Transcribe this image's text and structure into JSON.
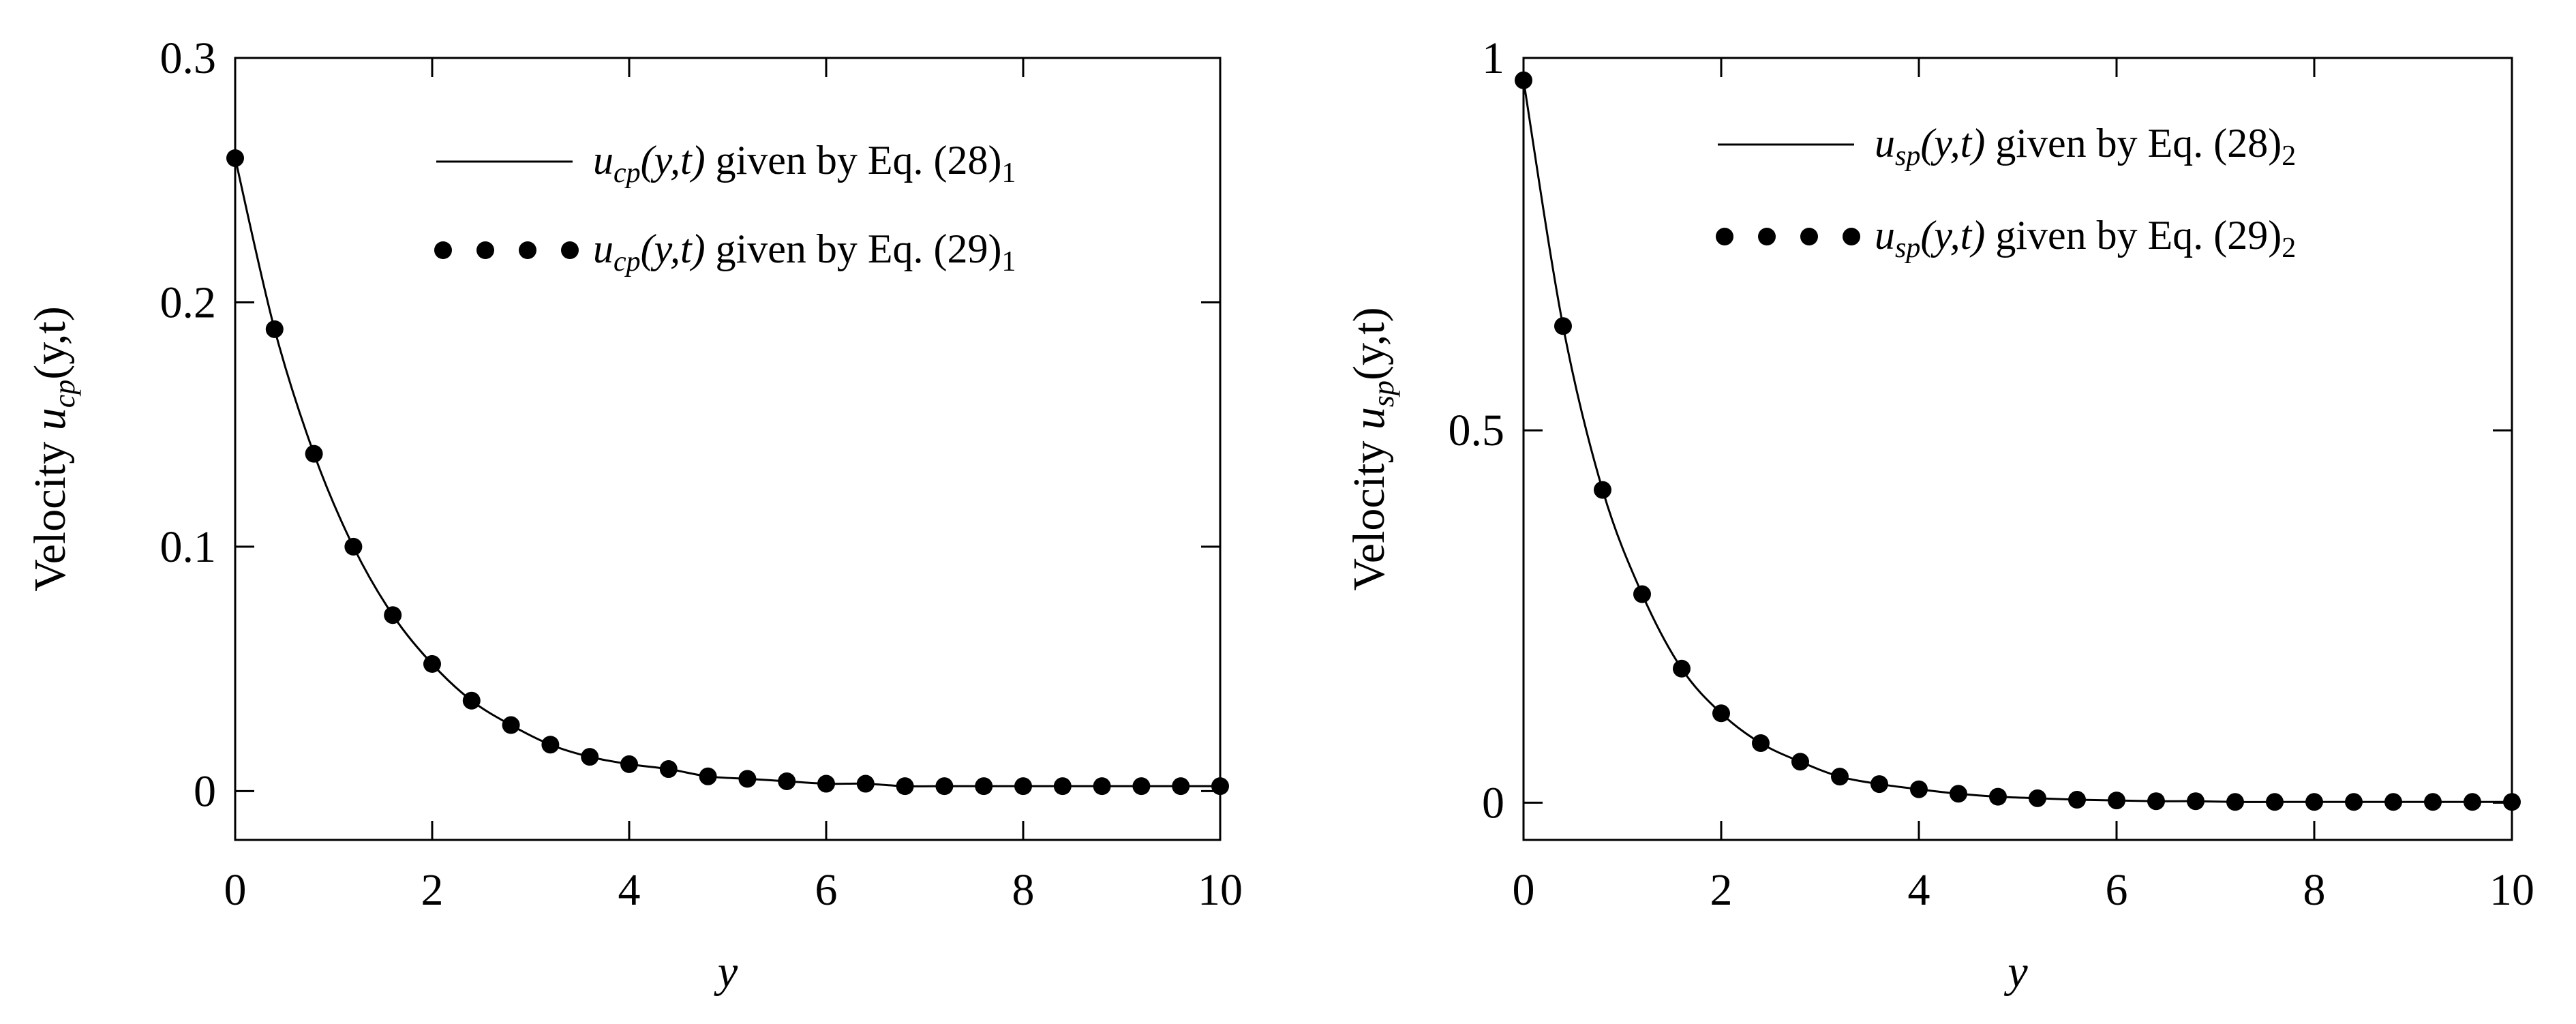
{
  "chart_data": [
    {
      "type": "line",
      "title": "",
      "xlabel": "y",
      "ylabel": {
        "prefix": "Velocity ",
        "var": "u",
        "sub": "cp",
        "args": "(y,t)"
      },
      "xlim": [
        0,
        10
      ],
      "ylim": [
        -0.02,
        0.3
      ],
      "xticks": [
        0,
        2,
        4,
        6,
        8,
        10
      ],
      "yticks": [
        0,
        0.1,
        0.2,
        0.3
      ],
      "ytick_labels": [
        "0",
        "0.1",
        "0.2",
        "0.3"
      ],
      "grid": false,
      "legend_position": "top-right",
      "series": [
        {
          "legend": {
            "var": "u",
            "sub": "cp",
            "args": "(y,t)",
            "text": " given by Eq. (28)",
            "subnum": "1"
          },
          "style": "line",
          "x": [
            0,
            0.4,
            0.8,
            1.2,
            1.6,
            2.0,
            2.4,
            2.8,
            3.2,
            3.6,
            4.0,
            4.4,
            4.8,
            5.2,
            5.6,
            6.0,
            6.4,
            6.8,
            7.2,
            7.6,
            8.0,
            8.4,
            8.8,
            9.2,
            9.6,
            10.0
          ],
          "y": [
            0.259,
            0.189,
            0.138,
            0.1,
            0.072,
            0.052,
            0.037,
            0.027,
            0.019,
            0.014,
            0.011,
            0.009,
            0.006,
            0.005,
            0.004,
            0.003,
            0.003,
            0.002,
            0.002,
            0.002,
            0.002,
            0.002,
            0.002,
            0.002,
            0.002,
            0.002
          ]
        },
        {
          "legend": {
            "var": "u",
            "sub": "cp",
            "args": "(y,t)",
            "text": " given by Eq. (29)",
            "subnum": "1"
          },
          "style": "dots",
          "x": [
            0,
            0.4,
            0.8,
            1.2,
            1.6,
            2.0,
            2.4,
            2.8,
            3.2,
            3.6,
            4.0,
            4.4,
            4.8,
            5.2,
            5.6,
            6.0,
            6.4,
            6.8,
            7.2,
            7.6,
            8.0,
            8.4,
            8.8,
            9.2,
            9.6,
            10.0
          ],
          "y": [
            0.259,
            0.189,
            0.138,
            0.1,
            0.072,
            0.052,
            0.037,
            0.027,
            0.019,
            0.014,
            0.011,
            0.009,
            0.006,
            0.005,
            0.004,
            0.003,
            0.003,
            0.002,
            0.002,
            0.002,
            0.002,
            0.002,
            0.002,
            0.002,
            0.002,
            0.002
          ]
        }
      ]
    },
    {
      "type": "line",
      "title": "",
      "xlabel": "y",
      "ylabel": {
        "prefix": "Velocity ",
        "var": "u",
        "sub": "sp",
        "args": "(y,t)"
      },
      "xlim": [
        0,
        10
      ],
      "ylim": [
        -0.05,
        1.0
      ],
      "xticks": [
        0,
        2,
        4,
        6,
        8,
        10
      ],
      "yticks": [
        0,
        0.5,
        1
      ],
      "ytick_labels": [
        "0",
        "0.5",
        "1"
      ],
      "grid": false,
      "legend_position": "top-right",
      "series": [
        {
          "legend": {
            "var": "u",
            "sub": "sp",
            "args": "(y,t)",
            "text": " given by Eq. (28)",
            "subnum": "2"
          },
          "style": "line",
          "x": [
            0,
            0.4,
            0.8,
            1.2,
            1.6,
            2.0,
            2.4,
            2.8,
            3.2,
            3.6,
            4.0,
            4.4,
            4.8,
            5.2,
            5.6,
            6.0,
            6.4,
            6.8,
            7.2,
            7.6,
            8.0,
            8.4,
            8.8,
            9.2,
            9.6,
            10.0
          ],
          "y": [
            0.97,
            0.64,
            0.42,
            0.28,
            0.18,
            0.12,
            0.08,
            0.055,
            0.035,
            0.025,
            0.018,
            0.012,
            0.008,
            0.006,
            0.004,
            0.003,
            0.002,
            0.002,
            0.001,
            0.001,
            0.001,
            0.001,
            0.001,
            0.001,
            0.001,
            0.001
          ]
        },
        {
          "legend": {
            "var": "u",
            "sub": "sp",
            "args": "(y,t)",
            "text": " given by Eq. (29)",
            "subnum": "2"
          },
          "style": "dots",
          "x": [
            0,
            0.4,
            0.8,
            1.2,
            1.6,
            2.0,
            2.4,
            2.8,
            3.2,
            3.6,
            4.0,
            4.4,
            4.8,
            5.2,
            5.6,
            6.0,
            6.4,
            6.8,
            7.2,
            7.6,
            8.0,
            8.4,
            8.8,
            9.2,
            9.6,
            10.0
          ],
          "y": [
            0.97,
            0.64,
            0.42,
            0.28,
            0.18,
            0.12,
            0.08,
            0.055,
            0.035,
            0.025,
            0.018,
            0.012,
            0.008,
            0.006,
            0.004,
            0.003,
            0.002,
            0.002,
            0.001,
            0.001,
            0.001,
            0.001,
            0.001,
            0.001,
            0.001,
            0.001
          ]
        }
      ]
    }
  ]
}
